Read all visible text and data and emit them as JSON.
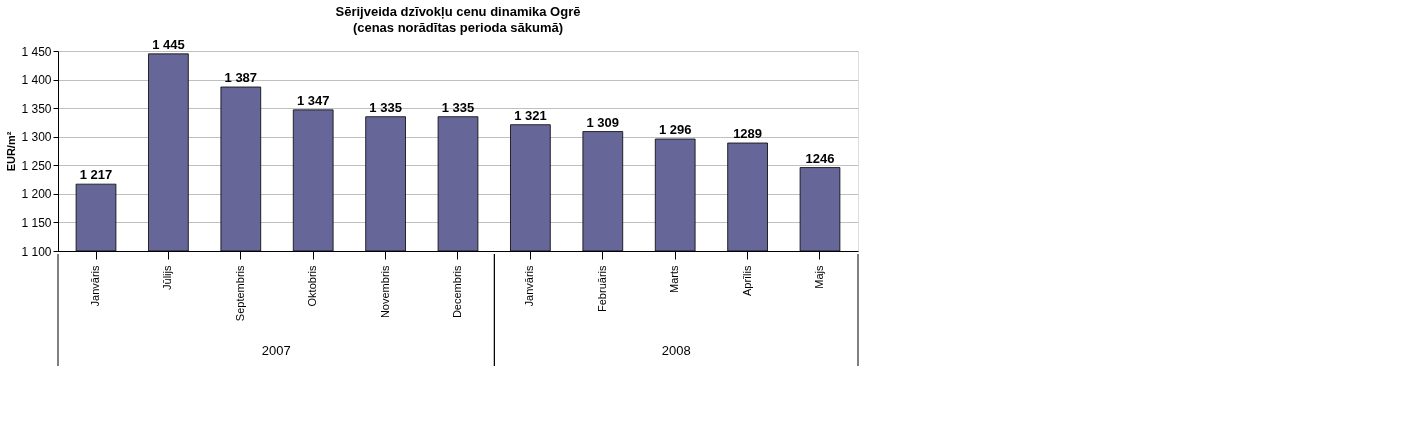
{
  "chart_data": {
    "type": "bar",
    "title": "Sērijveida dzīvokļu cenu dinamika Ogrē",
    "subtitle": "(cenas norādītas perioda sākumā)",
    "ylabel": "EUR/m²",
    "categories": [
      "Janvāris",
      "Jūlijs",
      "Septembris",
      "Oktobris",
      "Novembris",
      "Decembris",
      "Janvāris",
      "Februāris",
      "Marts",
      "Aprīlis",
      "Majs"
    ],
    "values": [
      1217,
      1445,
      1387,
      1347,
      1335,
      1335,
      1321,
      1309,
      1296,
      1289,
      1246
    ],
    "value_labels": [
      "1 217",
      "1 445",
      "1 387",
      "1 347",
      "1 335",
      "1 335",
      "1 321",
      "1 309",
      "1 296",
      "1289",
      "1246"
    ],
    "color": "#666699",
    "ylim": [
      1100,
      1450
    ],
    "yticks": [
      {
        "value": 1100,
        "label": "1 100"
      },
      {
        "value": 1150,
        "label": "1 150"
      },
      {
        "value": 1200,
        "label": "1 200"
      },
      {
        "value": 1250,
        "label": "1 250"
      },
      {
        "value": 1300,
        "label": "1 300"
      },
      {
        "value": 1350,
        "label": "1 350"
      },
      {
        "value": 1400,
        "label": "1 400"
      },
      {
        "value": 1450,
        "label": "1 450"
      }
    ],
    "annotations": [
      "2007",
      "2008"
    ],
    "grid": "y"
  }
}
